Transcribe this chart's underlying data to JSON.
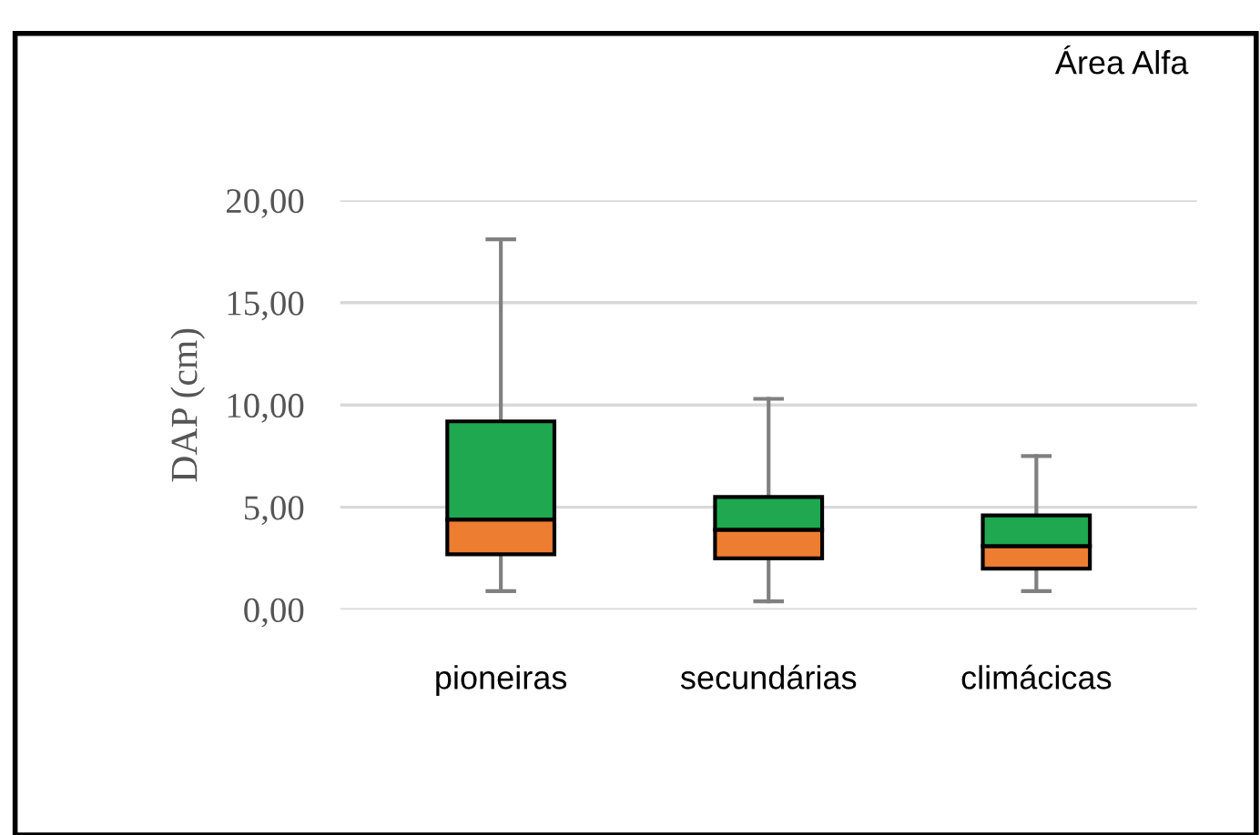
{
  "chart_data": {
    "type": "box",
    "ylabel": "DAP (cm)",
    "categories": [
      "pioneiras",
      "secundárias",
      "climácicas"
    ],
    "series": [
      {
        "color": "#1fa84f",
        "colors": [
          "#ed7d31",
          "#ed7d31",
          "#ed7d31"
        ],
        "boxes": [
          {
            "low": 0.9,
            "q1": 2.7,
            "median": 4.4,
            "q3": 9.2,
            "high": 18.1
          },
          {
            "low": 0.4,
            "q1": 2.5,
            "median": 3.9,
            "q3": 5.5,
            "high": 10.3
          },
          {
            "low": 0.9,
            "q1": 2.0,
            "median": 3.1,
            "q3": 4.6,
            "high": 7.5
          }
        ]
      }
    ],
    "ylim": [
      0,
      20
    ],
    "yticks": [
      {
        "value": 0,
        "label": "0,00"
      },
      {
        "value": 5,
        "label": "5,00"
      },
      {
        "value": 10,
        "label": "10,00"
      },
      {
        "value": 15,
        "label": "15,00"
      },
      {
        "value": 20,
        "label": "20,00"
      }
    ],
    "grid": "y",
    "annotations": [
      "Área Alfa"
    ]
  }
}
